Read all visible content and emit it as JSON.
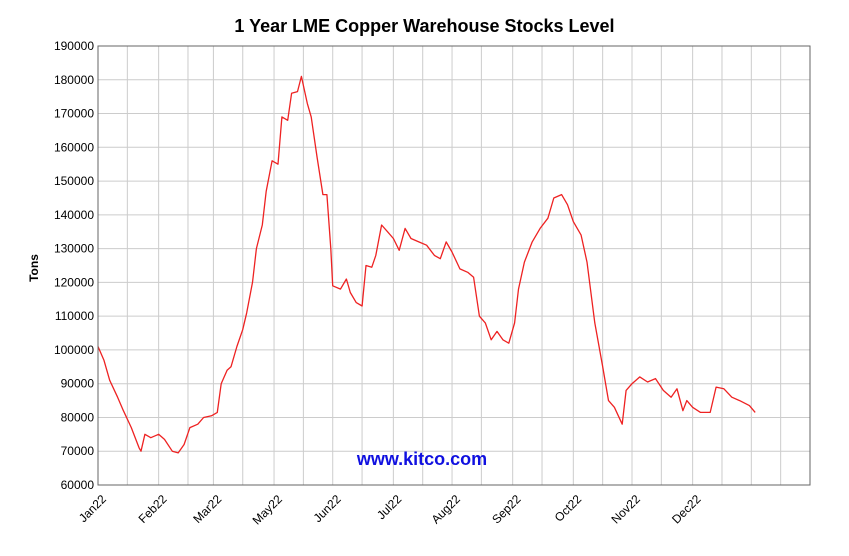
{
  "chart_data": {
    "type": "line",
    "title": "1 Year LME Copper Warehouse Stocks Level",
    "xlabel": "",
    "ylabel": "Tons",
    "ylim": [
      60000,
      190000
    ],
    "yticks": [
      190000,
      180000,
      170000,
      160000,
      150000,
      140000,
      130000,
      120000,
      110000,
      100000,
      90000,
      80000,
      70000,
      60000
    ],
    "xlim": [
      "2022-01-01",
      "2022-12-31"
    ],
    "xticks": [
      {
        "label": "Jan22",
        "date": "2022-01-01"
      },
      {
        "label": "Feb22",
        "date": "2022-02-01"
      },
      {
        "label": "Mar22",
        "date": "2022-03-01"
      },
      {
        "label": "May22",
        "date": "2022-04-01"
      },
      {
        "label": "Jun22",
        "date": "2022-05-01"
      },
      {
        "label": "Jul22",
        "date": "2022-06-01"
      },
      {
        "label": "Aug22",
        "date": "2022-07-01"
      },
      {
        "label": "Sep22",
        "date": "2022-08-01"
      },
      {
        "label": "Oct22",
        "date": "2022-09-01"
      },
      {
        "label": "Nov22",
        "date": "2022-10-01"
      },
      {
        "label": "Dec22",
        "date": "2022-11-01"
      }
    ],
    "grid": true,
    "legend": "none",
    "series": [
      {
        "color": "#ee2222",
        "points": [
          [
            "2022-01-01",
            101000
          ],
          [
            "2022-01-04",
            97000
          ],
          [
            "2022-01-07",
            91000
          ],
          [
            "2022-01-11",
            86000
          ],
          [
            "2022-01-14",
            82000
          ],
          [
            "2022-01-18",
            77000
          ],
          [
            "2022-01-22",
            71000
          ],
          [
            "2022-01-23",
            70000
          ],
          [
            "2022-01-25",
            75000
          ],
          [
            "2022-01-28",
            74000
          ],
          [
            "2022-02-01",
            75000
          ],
          [
            "2022-02-04",
            73500
          ],
          [
            "2022-02-08",
            70000
          ],
          [
            "2022-02-11",
            69500
          ],
          [
            "2022-02-14",
            72000
          ],
          [
            "2022-02-17",
            77000
          ],
          [
            "2022-02-21",
            78000
          ],
          [
            "2022-02-24",
            80000
          ],
          [
            "2022-02-28",
            80500
          ],
          [
            "2022-03-03",
            81500
          ],
          [
            "2022-03-05",
            90000
          ],
          [
            "2022-03-08",
            94000
          ],
          [
            "2022-03-10",
            95000
          ],
          [
            "2022-03-13",
            101000
          ],
          [
            "2022-03-16",
            106000
          ],
          [
            "2022-03-18",
            111000
          ],
          [
            "2022-03-21",
            120000
          ],
          [
            "2022-03-23",
            130000
          ],
          [
            "2022-03-26",
            137000
          ],
          [
            "2022-03-28",
            147000
          ],
          [
            "2022-03-31",
            156000
          ],
          [
            "2022-04-03",
            155000
          ],
          [
            "2022-04-05",
            169000
          ],
          [
            "2022-04-08",
            168000
          ],
          [
            "2022-04-10",
            176000
          ],
          [
            "2022-04-13",
            176500
          ],
          [
            "2022-04-15",
            181000
          ],
          [
            "2022-04-18",
            173000
          ],
          [
            "2022-04-20",
            169000
          ],
          [
            "2022-04-23",
            157000
          ],
          [
            "2022-04-26",
            146000
          ],
          [
            "2022-04-28",
            146000
          ],
          [
            "2022-04-30",
            130000
          ],
          [
            "2022-05-01",
            119000
          ],
          [
            "2022-05-05",
            118000
          ],
          [
            "2022-05-08",
            121000
          ],
          [
            "2022-05-10",
            117000
          ],
          [
            "2022-05-13",
            114000
          ],
          [
            "2022-05-16",
            113000
          ],
          [
            "2022-05-18",
            125000
          ],
          [
            "2022-05-21",
            124500
          ],
          [
            "2022-05-23",
            128000
          ],
          [
            "2022-05-26",
            137000
          ],
          [
            "2022-05-29",
            135000
          ],
          [
            "2022-06-01",
            133000
          ],
          [
            "2022-06-04",
            129500
          ],
          [
            "2022-06-07",
            136000
          ],
          [
            "2022-06-10",
            133000
          ],
          [
            "2022-06-14",
            132000
          ],
          [
            "2022-06-18",
            131000
          ],
          [
            "2022-06-22",
            128000
          ],
          [
            "2022-06-25",
            127000
          ],
          [
            "2022-06-28",
            132000
          ],
          [
            "2022-07-01",
            129000
          ],
          [
            "2022-07-05",
            124000
          ],
          [
            "2022-07-09",
            123000
          ],
          [
            "2022-07-12",
            121500
          ],
          [
            "2022-07-15",
            110000
          ],
          [
            "2022-07-18",
            108000
          ],
          [
            "2022-07-21",
            103000
          ],
          [
            "2022-07-24",
            105500
          ],
          [
            "2022-07-27",
            103000
          ],
          [
            "2022-07-30",
            102000
          ],
          [
            "2022-08-02",
            108000
          ],
          [
            "2022-08-04",
            118000
          ],
          [
            "2022-08-07",
            126000
          ],
          [
            "2022-08-11",
            132000
          ],
          [
            "2022-08-15",
            136000
          ],
          [
            "2022-08-19",
            139000
          ],
          [
            "2022-08-22",
            145000
          ],
          [
            "2022-08-26",
            146000
          ],
          [
            "2022-08-29",
            143000
          ],
          [
            "2022-09-01",
            138000
          ],
          [
            "2022-09-05",
            134000
          ],
          [
            "2022-09-08",
            126000
          ],
          [
            "2022-09-12",
            108000
          ],
          [
            "2022-09-16",
            95000
          ],
          [
            "2022-09-19",
            85000
          ],
          [
            "2022-09-22",
            83000
          ],
          [
            "2022-09-26",
            78000
          ],
          [
            "2022-09-28",
            88000
          ],
          [
            "2022-10-01",
            90000
          ],
          [
            "2022-10-05",
            92000
          ],
          [
            "2022-10-09",
            90500
          ],
          [
            "2022-10-13",
            91500
          ],
          [
            "2022-10-17",
            88000
          ],
          [
            "2022-10-21",
            86000
          ],
          [
            "2022-10-24",
            88500
          ],
          [
            "2022-10-27",
            82000
          ],
          [
            "2022-10-29",
            85000
          ],
          [
            "2022-11-01",
            83000
          ],
          [
            "2022-11-05",
            81500
          ],
          [
            "2022-11-10",
            81500
          ],
          [
            "2022-11-13",
            89000
          ],
          [
            "2022-11-17",
            88500
          ],
          [
            "2022-11-21",
            86000
          ],
          [
            "2022-11-25",
            85000
          ],
          [
            "2022-11-30",
            83500
          ],
          [
            "2022-12-03",
            81500
          ]
        ]
      }
    ]
  },
  "watermark": "www.kitco.com"
}
